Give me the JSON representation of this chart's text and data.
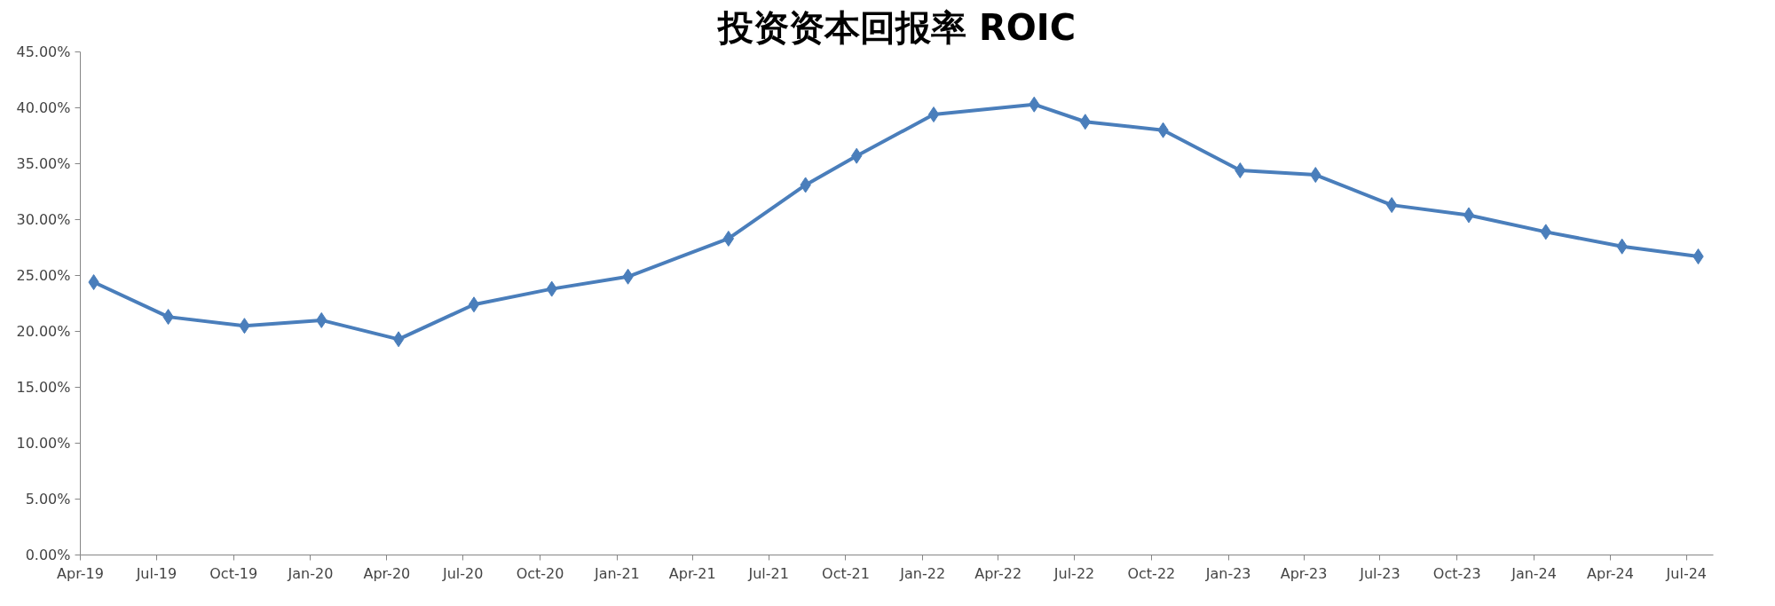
{
  "chart_data": {
    "type": "line",
    "title": "投资资本回报率 ROIC",
    "x": [
      "2019-04-17",
      "2019-07-15",
      "2019-10-14",
      "2020-01-14",
      "2020-04-15",
      "2020-07-14",
      "2020-10-15",
      "2021-01-14",
      "2021-05-14",
      "2021-08-14",
      "2021-10-14",
      "2022-01-14",
      "2022-05-14",
      "2022-07-14",
      "2022-10-15",
      "2023-01-15",
      "2023-04-15",
      "2023-07-15",
      "2023-10-15",
      "2024-01-15",
      "2024-04-15",
      "2024-07-15"
    ],
    "series": [
      {
        "color": "#4a7ebb",
        "values": [
          24.4,
          21.3,
          20.5,
          21.0,
          19.3,
          22.4,
          23.8,
          24.9,
          28.3,
          33.1,
          35.7,
          39.4,
          40.3,
          38.75,
          38.0,
          34.4,
          34.0,
          31.3,
          30.4,
          28.9,
          27.6,
          26.7
        ]
      }
    ],
    "xlim": [
      "2019-04-01",
      "2024-08-02"
    ],
    "xticks": [
      {
        "value": "2019-04-01",
        "label": "Apr-19"
      },
      {
        "value": "2019-07-01",
        "label": "Jul-19"
      },
      {
        "value": "2019-10-01",
        "label": "Oct-19"
      },
      {
        "value": "2020-01-01",
        "label": "Jan-20"
      },
      {
        "value": "2020-04-01",
        "label": "Apr-20"
      },
      {
        "value": "2020-07-01",
        "label": "Jul-20"
      },
      {
        "value": "2020-10-01",
        "label": "Oct-20"
      },
      {
        "value": "2021-01-01",
        "label": "Jan-21"
      },
      {
        "value": "2021-04-01",
        "label": "Apr-21"
      },
      {
        "value": "2021-07-01",
        "label": "Jul-21"
      },
      {
        "value": "2021-10-01",
        "label": "Oct-21"
      },
      {
        "value": "2022-01-01",
        "label": "Jan-22"
      },
      {
        "value": "2022-04-01",
        "label": "Apr-22"
      },
      {
        "value": "2022-07-01",
        "label": "Jul-22"
      },
      {
        "value": "2022-10-01",
        "label": "Oct-22"
      },
      {
        "value": "2023-01-01",
        "label": "Jan-23"
      },
      {
        "value": "2023-04-01",
        "label": "Apr-23"
      },
      {
        "value": "2023-07-01",
        "label": "Jul-23"
      },
      {
        "value": "2023-10-01",
        "label": "Oct-23"
      },
      {
        "value": "2024-01-01",
        "label": "Jan-24"
      },
      {
        "value": "2024-04-01",
        "label": "Apr-24"
      },
      {
        "value": "2024-07-01",
        "label": "Jul-24"
      }
    ],
    "ylim": [
      0,
      45
    ],
    "yticks": [
      {
        "value": 0,
        "label": "0.00%"
      },
      {
        "value": 5,
        "label": "5.00%"
      },
      {
        "value": 10,
        "label": "10.00%"
      },
      {
        "value": 15,
        "label": "15.00%"
      },
      {
        "value": 20,
        "label": "20.00%"
      },
      {
        "value": 25,
        "label": "25.00%"
      },
      {
        "value": 30,
        "label": "30.00%"
      },
      {
        "value": 35,
        "label": "35.00%"
      },
      {
        "value": 40,
        "label": "40.00%"
      },
      {
        "value": 45,
        "label": "45.00%"
      }
    ],
    "grid": false,
    "marker": "diamond",
    "line_style": "solid"
  }
}
